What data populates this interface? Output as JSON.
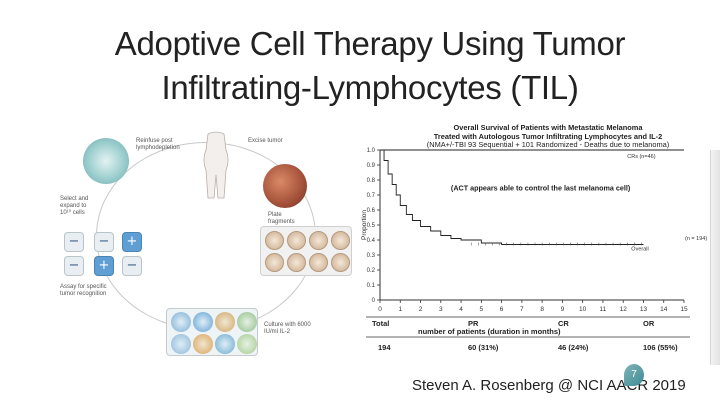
{
  "slide": {
    "title_line1": "Adoptive Cell Therapy Using Tumor",
    "title_line2": "Infiltrating-Lymphocytes (TIL)",
    "footer": "Steven A. Rosenberg @ NCI AACR 2019",
    "page_number": "7"
  },
  "diagram": {
    "labels": {
      "reinfuse": "Reinfuse post lymphodepletion",
      "excise": "Excise tumor",
      "select": "Select and expand to 10¹⁰ cells",
      "plate": "Plate fragments",
      "assay": "Assay for specific tumor recognition",
      "culture": "Culture with 6000 IU/ml IL-2"
    },
    "assay_wells": [
      "−",
      "−",
      "+",
      "−",
      "+",
      "−"
    ]
  },
  "chart_data": {
    "type": "line",
    "title_line1": "Overall Survival of Patients with Metastatic Melanoma",
    "title_line2": "Treated with Autologous Tumor Infiltrating Lymphocytes and IL-2",
    "title_line3": "(NMA+/-TBI 93 Sequential + 101 Randomized - Deaths due to melanoma)",
    "annotation": "(ACT appears able to control the last melanoma cell)",
    "ylabel": "Proportion",
    "xlim": [
      0,
      15
    ],
    "ylim": [
      0,
      1.0
    ],
    "yticks": [
      "0",
      "0.1",
      "0.2",
      "0.3",
      "0.4",
      "0.5",
      "0.6",
      "0.7",
      "0.8",
      "0.9",
      "1.0"
    ],
    "xticks": [
      "0",
      "1",
      "2",
      "3",
      "4",
      "5",
      "6",
      "7",
      "8",
      "9",
      "10",
      "11",
      "12",
      "13",
      "14",
      "15"
    ],
    "series": [
      {
        "name": "CRs (n=46)",
        "x": [
          0,
          15
        ],
        "y": [
          1.0,
          1.0
        ]
      },
      {
        "name": "Overall",
        "x": [
          0,
          0.2,
          0.4,
          0.6,
          0.8,
          1.0,
          1.3,
          1.6,
          2.0,
          2.5,
          3.0,
          3.5,
          4.0,
          5.0,
          6.0,
          7.0,
          8.0,
          10.0,
          12.0,
          13.0
        ],
        "y": [
          1.0,
          0.93,
          0.84,
          0.77,
          0.7,
          0.63,
          0.57,
          0.53,
          0.49,
          0.46,
          0.43,
          0.41,
          0.4,
          0.38,
          0.37,
          0.37,
          0.37,
          0.37,
          0.37,
          0.37
        ]
      }
    ],
    "overall_n": "(n = 194)",
    "table": {
      "headers": [
        "Total",
        "PR",
        "CR",
        "OR"
      ],
      "subheader": "number of patients (duration in months)",
      "values": [
        "194",
        "60 (31%)",
        "46 (24%)",
        "106 (55%)"
      ]
    }
  }
}
